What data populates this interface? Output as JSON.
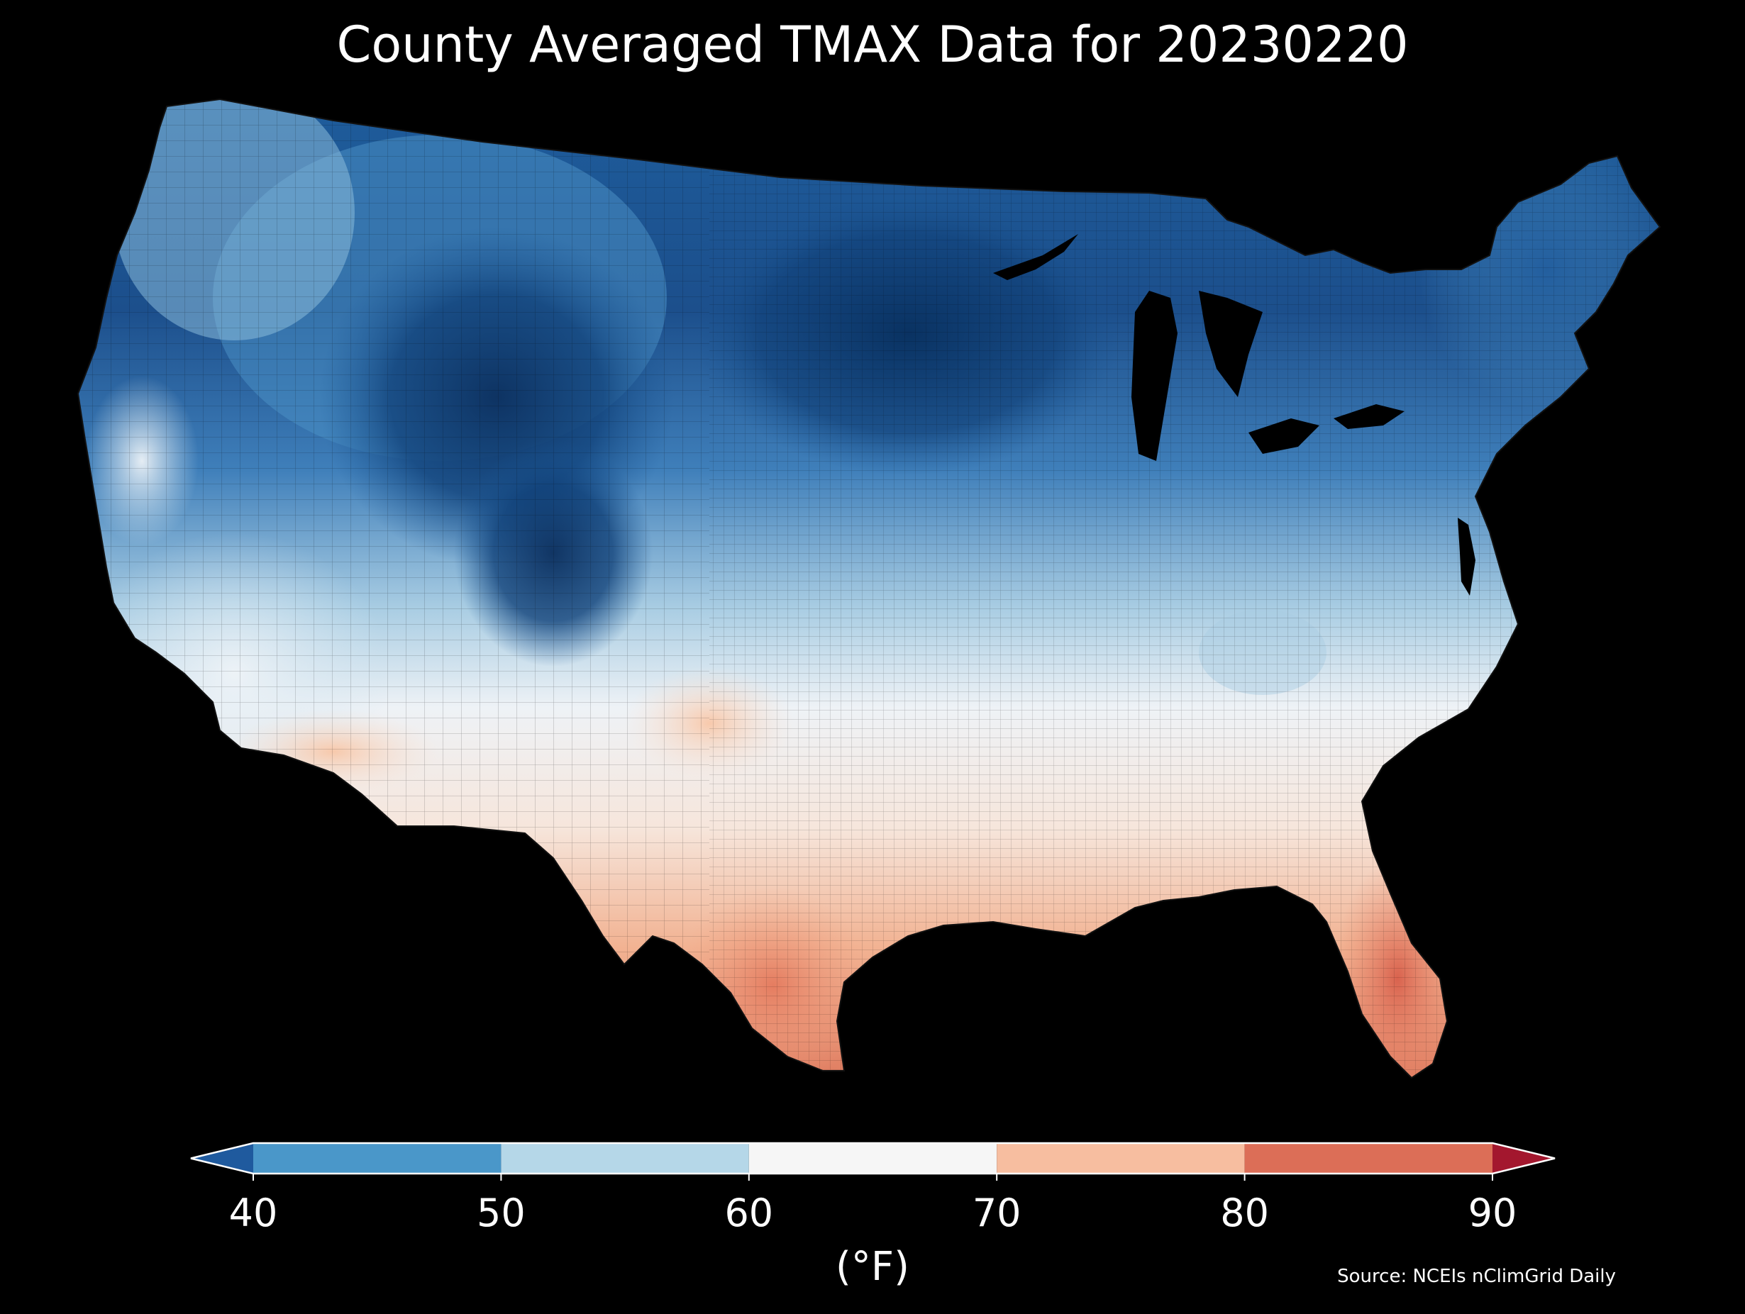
{
  "title": "County Averaged TMAX Data for 20230220",
  "colorbar": {
    "label": "(°F)",
    "ticks": [
      "40",
      "50",
      "60",
      "70",
      "80",
      "90"
    ],
    "bins": [
      {
        "range": [
          null,
          40
        ],
        "color": "#1f5a9e"
      },
      {
        "range": [
          40,
          50
        ],
        "color": "#4a97c9"
      },
      {
        "range": [
          50,
          60
        ],
        "color": "#b5d7e8"
      },
      {
        "range": [
          60,
          70
        ],
        "color": "#f6f6f6"
      },
      {
        "range": [
          70,
          80
        ],
        "color": "#f7bea0"
      },
      {
        "range": [
          80,
          90
        ],
        "color": "#dc6e57"
      },
      {
        "range": [
          90,
          null
        ],
        "color": "#a3172e"
      }
    ]
  },
  "source": "Source: NCEIs nClimGrid Daily",
  "colors": {
    "background": "#000000",
    "text": "#ffffff"
  }
}
